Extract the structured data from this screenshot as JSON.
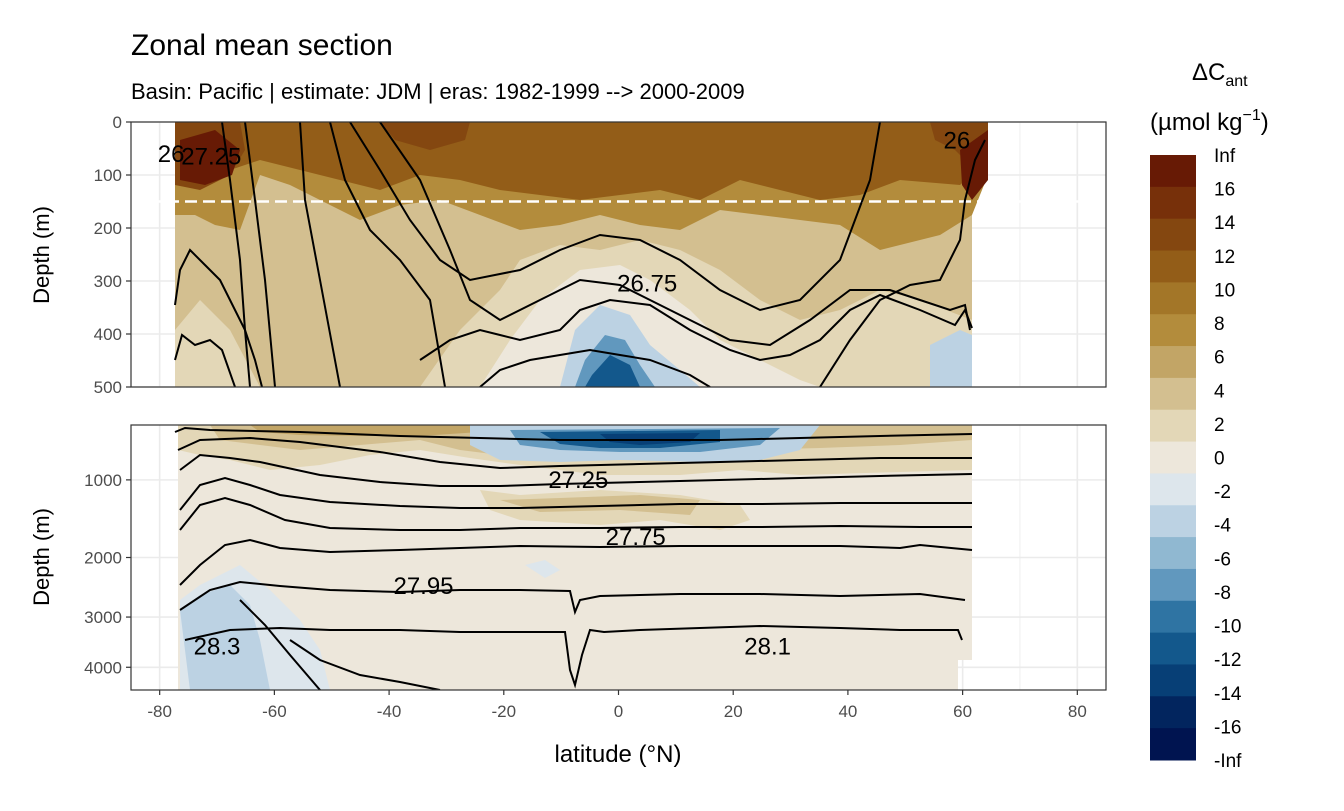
{
  "chart_data": {
    "type": "contour",
    "title": "Zonal mean section",
    "subtitle": "Basin: Pacific | estimate: JDM  | eras: 1982-1999 --> 2000-2009",
    "xlabel": "latitude (°N)",
    "x_ticks": [
      -80,
      -60,
      -40,
      -20,
      0,
      20,
      40,
      60,
      80
    ],
    "xlim": [
      -85,
      85
    ],
    "panels": [
      {
        "name": "upper",
        "ylabel": "Depth (m)",
        "ylim": [
          0,
          500
        ],
        "y_ticks": [
          0,
          100,
          200,
          300,
          400,
          500
        ],
        "reference_depth": 150,
        "isopycnal_labels": [
          {
            "text": "26",
            "lat": -78,
            "depth": 60
          },
          {
            "text": "27.25",
            "lat": -71,
            "depth": 65
          },
          {
            "text": "26.75",
            "lat": 5,
            "depth": 305
          },
          {
            "text": "26",
            "lat": 59,
            "depth": 35
          }
        ]
      },
      {
        "name": "lower",
        "ylabel": "Depth (m)",
        "ylim": [
          500,
          4500
        ],
        "y_ticks": [
          1000,
          2000,
          3000,
          4000
        ],
        "isopycnal_labels": [
          {
            "text": "27.25",
            "lat": -7,
            "depth": 1000
          },
          {
            "text": "27.75",
            "lat": 3,
            "depth": 1700
          },
          {
            "text": "27.95",
            "lat": -34,
            "depth": 2450
          },
          {
            "text": "28.3",
            "lat": -70,
            "depth": 3570
          },
          {
            "text": "28.1",
            "lat": 26,
            "depth": 3570
          }
        ]
      }
    ],
    "colorbar": {
      "title_main": "ΔC",
      "title_sub": "ant",
      "unit_main": "(µmol kg",
      "unit_sup": "−1",
      "unit_end": ")",
      "labels": [
        "Inf",
        "16",
        "14",
        "12",
        "10",
        "8",
        "6",
        "4",
        "2",
        "0",
        "-2",
        "-4",
        "-6",
        "-8",
        "-10",
        "-12",
        "-14",
        "-16",
        "-Inf"
      ],
      "colors": [
        "#671a05",
        "#77300a",
        "#844710",
        "#935d18",
        "#a37628",
        "#b38c3c",
        "#c2a566",
        "#d3bf90",
        "#e3d7b7",
        "#ede7db",
        "#dde6ec",
        "#bcd2e3",
        "#90b8d1",
        "#6198be",
        "#2f74a3",
        "#13588c",
        "#073f76",
        "#02255e",
        "#001450"
      ]
    }
  }
}
